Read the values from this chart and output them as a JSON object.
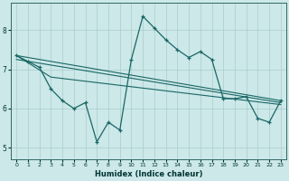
{
  "background_color": "#cce8e8",
  "grid_color": "#aacccc",
  "line_color": "#1a6666",
  "xlabel": "Humidex (Indice chaleur)",
  "xlim": [
    -0.5,
    23.5
  ],
  "ylim": [
    4.7,
    8.7
  ],
  "yticks": [
    5,
    6,
    7,
    8
  ],
  "xticks": [
    0,
    1,
    2,
    3,
    4,
    5,
    6,
    7,
    8,
    9,
    10,
    11,
    12,
    13,
    14,
    15,
    16,
    17,
    18,
    19,
    20,
    21,
    22,
    23
  ],
  "series_main": {
    "x": [
      0,
      1,
      2,
      3,
      4,
      5,
      6,
      7,
      8,
      9,
      10,
      11,
      12,
      13,
      14,
      15,
      16,
      17,
      18,
      19,
      20,
      21,
      22,
      23
    ],
    "y": [
      7.35,
      7.2,
      7.05,
      6.5,
      6.2,
      6.0,
      6.15,
      5.15,
      5.65,
      5.45,
      7.25,
      8.35,
      8.05,
      7.75,
      7.5,
      7.3,
      7.45,
      7.25,
      6.25,
      6.25,
      6.3,
      5.75,
      5.65,
      6.2
    ]
  },
  "trend_lines": [
    {
      "x": [
        0,
        23
      ],
      "y": [
        7.35,
        6.2
      ]
    },
    {
      "x": [
        0,
        23
      ],
      "y": [
        7.25,
        6.15
      ]
    },
    {
      "x": [
        0,
        3,
        23
      ],
      "y": [
        7.35,
        6.8,
        6.1
      ]
    }
  ],
  "figsize": [
    3.2,
    2.0
  ],
  "dpi": 100
}
